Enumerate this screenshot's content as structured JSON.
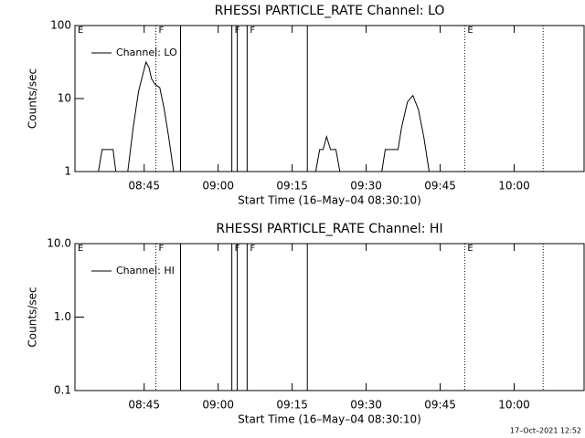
{
  "chart_data": [
    {
      "type": "line",
      "title": "RHESSI PARTICLE_RATE Channel: LO",
      "xlabel": "Start Time (16–May–04 08:30:10)",
      "ylabel": "Counts/sec",
      "log_y": true,
      "legend": "upper left",
      "color": "#000000",
      "xlim": [
        0.8,
        104
      ],
      "xticks": [
        {
          "value": 14.83,
          "label": "08:45"
        },
        {
          "value": 29.83,
          "label": "09:00"
        },
        {
          "value": 44.83,
          "label": "09:15"
        },
        {
          "value": 59.83,
          "label": "09:30"
        },
        {
          "value": 74.83,
          "label": "09:45"
        },
        {
          "value": 89.83,
          "label": "10:00"
        }
      ],
      "ylim": [
        1,
        100
      ],
      "yticks": [
        1,
        10,
        100
      ],
      "markers": [
        {
          "x": 0.8,
          "style": "dotted",
          "label": "E"
        },
        {
          "x": 17.2,
          "style": "dotted",
          "label": "F"
        },
        {
          "x": 22.2,
          "style": "solid"
        },
        {
          "x": 32.6,
          "style": "solid",
          "label": "F"
        },
        {
          "x": 33.7,
          "style": "solid"
        },
        {
          "x": 35.7,
          "style": "solid",
          "label": "F"
        },
        {
          "x": 47.9,
          "style": "solid"
        },
        {
          "x": 79.8,
          "style": "dotted",
          "label": "E"
        },
        {
          "x": 95.7,
          "style": "dotted"
        }
      ],
      "series": [
        {
          "name": "Channel: LO",
          "color": "#000000",
          "x": [
            5.57,
            6.31,
            8.53,
            9.09,
            null,
            11.5,
            12.6,
            13.7,
            14.6,
            15.2,
            15.8,
            16.3,
            17.0,
            18.0,
            18.9,
            19.8,
            20.8,
            null,
            49.6,
            50.4,
            51.1,
            51.8,
            52.6,
            53.7,
            54.5,
            null,
            63.0,
            63.7,
            66.3,
            67.0,
            68.2,
            69.3,
            70.4,
            71.5,
            72.6
          ],
          "values": [
            1,
            2,
            2,
            1,
            null,
            1,
            4,
            12.6,
            22,
            31.6,
            26.6,
            18.8,
            15.8,
            14.1,
            7.1,
            3,
            1,
            null,
            1,
            2,
            2,
            3,
            2,
            2,
            1,
            null,
            1,
            2,
            2,
            4,
            9,
            11,
            7.1,
            3,
            1
          ]
        }
      ]
    },
    {
      "type": "line",
      "title": "RHESSI PARTICLE_RATE Channel: HI",
      "xlabel": "Start Time (16–May–04 08:30:10)",
      "ylabel": "Counts/sec",
      "log_y": true,
      "legend": "upper left",
      "color": "#000000",
      "xlim": [
        0.8,
        104
      ],
      "xticks": [
        {
          "value": 14.83,
          "label": "08:45"
        },
        {
          "value": 29.83,
          "label": "09:00"
        },
        {
          "value": 44.83,
          "label": "09:15"
        },
        {
          "value": 59.83,
          "label": "09:30"
        },
        {
          "value": 74.83,
          "label": "09:45"
        },
        {
          "value": 89.83,
          "label": "10:00"
        }
      ],
      "ylim": [
        0.1,
        10
      ],
      "yticks": [
        0.1,
        {
          "value": 1,
          "label": "1.0"
        },
        {
          "value": 10,
          "label": "10.0"
        }
      ],
      "markers": [
        {
          "x": 0.8,
          "style": "dotted",
          "label": "E"
        },
        {
          "x": 17.2,
          "style": "dotted",
          "label": "F"
        },
        {
          "x": 22.2,
          "style": "solid"
        },
        {
          "x": 32.6,
          "style": "solid",
          "label": "F"
        },
        {
          "x": 33.7,
          "style": "solid"
        },
        {
          "x": 35.7,
          "style": "solid",
          "label": "F"
        },
        {
          "x": 47.9,
          "style": "solid"
        },
        {
          "x": 79.8,
          "style": "dotted",
          "label": "E"
        },
        {
          "x": 95.7,
          "style": "dotted"
        }
      ],
      "series": [
        {
          "name": "Channel: HI",
          "color": "#000000",
          "x": [],
          "values": []
        }
      ]
    }
  ],
  "footer": "17–Oct–2021 12:52"
}
